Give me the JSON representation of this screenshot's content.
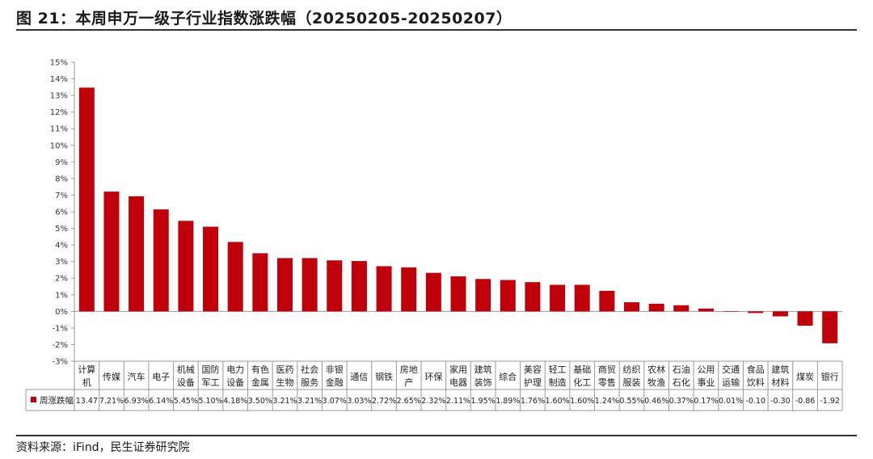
{
  "title": "图 21：本周申万一级子行业指数涨跌幅（20250205-20250207）",
  "source": "资料来源：iFind，民生证券研究院",
  "colors": {
    "bar": "#C0000B"
  },
  "chart_data": {
    "type": "bar",
    "categories": [
      [
        "计算",
        "机"
      ],
      [
        "传媒"
      ],
      [
        "汽车"
      ],
      [
        "电子"
      ],
      [
        "机械",
        "设备"
      ],
      [
        "国防",
        "军工"
      ],
      [
        "电力",
        "设备"
      ],
      [
        "有色",
        "金属"
      ],
      [
        "医药",
        "生物"
      ],
      [
        "社会",
        "服务"
      ],
      [
        "非银",
        "金融"
      ],
      [
        "通信"
      ],
      [
        "钢铁"
      ],
      [
        "房地",
        "产"
      ],
      [
        "环保"
      ],
      [
        "家用",
        "电器"
      ],
      [
        "建筑",
        "装饰"
      ],
      [
        "综合"
      ],
      [
        "美容",
        "护理"
      ],
      [
        "轻工",
        "制造"
      ],
      [
        "基础",
        "化工"
      ],
      [
        "商贸",
        "零售"
      ],
      [
        "纺织",
        "服装"
      ],
      [
        "农林",
        "牧渔"
      ],
      [
        "石油",
        "石化"
      ],
      [
        "公用",
        "事业"
      ],
      [
        "交通",
        "运输"
      ],
      [
        "食品",
        "饮料"
      ],
      [
        "建筑",
        "材料"
      ],
      [
        "煤炭"
      ],
      [
        "银行"
      ]
    ],
    "series": [
      {
        "name": "周涨跌幅",
        "values": [
          13.47,
          7.21,
          6.93,
          6.14,
          5.45,
          5.1,
          4.18,
          3.5,
          3.21,
          3.21,
          3.07,
          3.03,
          2.72,
          2.65,
          2.32,
          2.11,
          1.95,
          1.89,
          1.76,
          1.6,
          1.6,
          1.24,
          0.55,
          0.46,
          0.37,
          0.17,
          0.01,
          -0.1,
          -0.3,
          -0.86,
          -1.92
        ],
        "table_labels": [
          "13.47",
          "7.21%",
          "6.93%",
          "6.14%",
          "5.45%",
          "5.10%",
          "4.18%",
          "3.50%",
          "3.21%",
          "3.21%",
          "3.07%",
          "3.03%",
          "2.72%",
          "2.65%",
          "2.32%",
          "2.11%",
          "1.95%",
          "1.89%",
          "1.76%",
          "1.60%",
          "1.60%",
          "1.24%",
          "0.55%",
          "0.46%",
          "0.37%",
          "0.17%",
          "0.01%",
          "-0.10",
          "-0.30",
          "-0.86",
          "-1.92"
        ]
      }
    ],
    "y_ticks": [
      "15%",
      "14%",
      "13%",
      "12%",
      "11%",
      "10%",
      "9%",
      "8%",
      "7%",
      "6%",
      "5%",
      "4%",
      "3%",
      "2%",
      "1%",
      "0%",
      "-1%",
      "-2%",
      "-3%"
    ],
    "ylim": [
      -3,
      15
    ],
    "grid": false,
    "legend": "data-table-left"
  }
}
